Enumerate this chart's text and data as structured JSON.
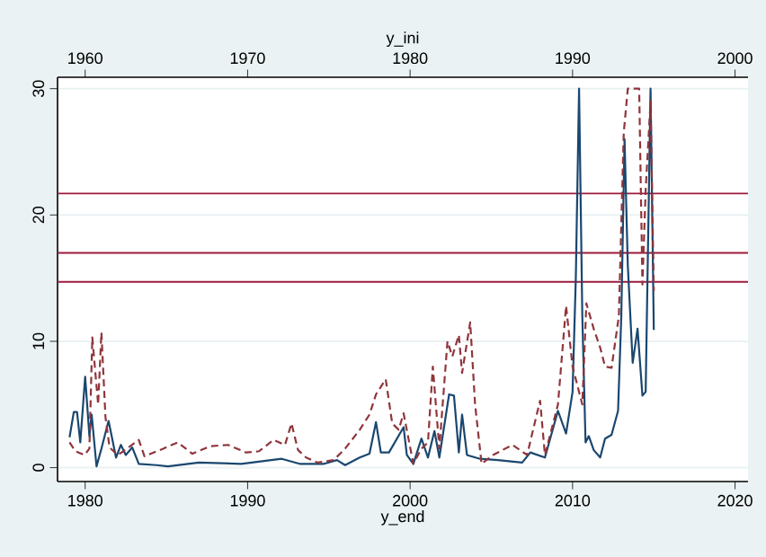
{
  "chart_data": {
    "type": "line",
    "xlabel": "y_end",
    "x2label": "y_ini",
    "xlim": [
      1978.3,
      2020.8
    ],
    "xticks": [
      1980,
      1990,
      2000,
      2010,
      2020
    ],
    "x2lim": [
      1958.3,
      2000.8
    ],
    "x2ticks": [
      1960,
      1970,
      1980,
      1990,
      2000
    ],
    "ylim": [
      -1.1,
      30.9
    ],
    "yticks": [
      0,
      10,
      20,
      30
    ],
    "grid": "y",
    "series": [
      {
        "color": "#1a476f",
        "line_style": "solid",
        "x": [
          1979.04,
          1979.3,
          1979.5,
          1979.7,
          1980.0,
          1980.26,
          1980.4,
          1980.7,
          1981.0,
          1981.44,
          1981.9,
          1982.2,
          1982.5,
          1982.9,
          1983.3,
          1984.4,
          1985.1,
          1987.0,
          1989.6,
          1992.1,
          1993.2,
          1994.7,
          1995.5,
          1996.0,
          1996.9,
          1997.5,
          1997.9,
          1998.2,
          1998.7,
          1999.6,
          1999.8,
          2000.2,
          2000.7,
          2001.1,
          2001.5,
          2001.8,
          2002.4,
          2002.7,
          2003.0,
          2003.2,
          2003.5,
          2004.3,
          2005.4,
          2006.9,
          2007.4,
          2008.3,
          2009.1,
          2009.6,
          2010.0,
          2010.2,
          2010.4,
          2010.6,
          2010.8,
          2011.0,
          2011.3,
          2011.7,
          2012.0,
          2012.4,
          2012.8,
          2013.0,
          2013.2,
          2013.4,
          2013.7,
          2014.0,
          2014.3,
          2014.5,
          2014.8,
          2015.0
        ],
        "values": [
          2.4,
          4.4,
          4.4,
          2.0,
          7.2,
          2.5,
          4.2,
          0.1,
          1.5,
          3.7,
          0.8,
          1.8,
          1.0,
          1.6,
          0.3,
          0.2,
          0.1,
          0.4,
          0.3,
          0.7,
          0.3,
          0.3,
          0.6,
          0.2,
          0.8,
          1.1,
          3.6,
          1.2,
          1.2,
          3.2,
          1.0,
          0.3,
          2.3,
          0.8,
          2.9,
          0.8,
          5.8,
          5.7,
          1.2,
          4.2,
          1.0,
          0.7,
          0.6,
          0.4,
          1.2,
          0.8,
          4.5,
          2.7,
          6.0,
          15,
          30,
          12,
          2.0,
          2.5,
          1.4,
          0.8,
          2.3,
          2.6,
          4.5,
          12,
          26,
          16,
          8.3,
          11,
          5.7,
          6.0,
          30,
          10.9
        ]
      },
      {
        "color": "#90353b",
        "line_style": "dashed",
        "x": [
          1979.04,
          1979.4,
          1979.96,
          1980.26,
          1980.44,
          1980.63,
          1980.8,
          1981.0,
          1981.25,
          1981.5,
          1982.0,
          1982.35,
          1983.3,
          1983.65,
          1984.8,
          1985.7,
          1986.6,
          1987.7,
          1988.8,
          1989.9,
          1990.7,
          1991.6,
          1992.3,
          1992.7,
          1993.1,
          1993.6,
          1994.3,
          1995.3,
          1996.0,
          1996.9,
          1997.5,
          1997.9,
          1998.5,
          1998.9,
          1999.3,
          1999.6,
          2000.2,
          2000.7,
          2001.1,
          2001.4,
          2001.8,
          2002.3,
          2002.6,
          2003.0,
          2003.2,
          2003.7,
          2004.0,
          2004.4,
          2005.1,
          2006.3,
          2007.2,
          2008.0,
          2008.3,
          2009.1,
          2009.6,
          2010.0,
          2010.6,
          2010.85,
          2011.3,
          2011.7,
          2012.0,
          2012.4,
          2012.85,
          2013.15,
          2013.4,
          2013.8,
          2014.1,
          2014.3,
          2014.5,
          2014.8,
          2015.0
        ],
        "values": [
          2.0,
          1.3,
          1.0,
          1.5,
          10.3,
          7.5,
          5.0,
          10.7,
          4.0,
          1.6,
          1.0,
          1.3,
          2.2,
          0.9,
          1.5,
          2.0,
          1.1,
          1.7,
          1.8,
          1.2,
          1.3,
          2.2,
          1.8,
          3.5,
          1.4,
          0.8,
          0.4,
          0.6,
          1.5,
          3.0,
          4.2,
          5.8,
          7.0,
          3.5,
          3.0,
          4.3,
          0.3,
          1.5,
          2.0,
          8.0,
          1.5,
          10,
          8.8,
          10.5,
          7.5,
          11.5,
          5.0,
          0.3,
          1.0,
          1.8,
          1.0,
          5.3,
          1.0,
          5.0,
          12.8,
          8.0,
          5.0,
          13,
          11,
          9.5,
          8.0,
          7.9,
          12,
          26.5,
          30,
          30,
          30,
          14.5,
          22,
          29,
          14
        ]
      }
    ],
    "ref_lines": [
      {
        "axis": "y",
        "value": 21.7,
        "color": "#9b1b3b"
      },
      {
        "axis": "y",
        "value": 17.0,
        "color": "#9b1b3b"
      },
      {
        "axis": "y",
        "value": 14.7,
        "color": "#9b1b3b"
      }
    ]
  }
}
